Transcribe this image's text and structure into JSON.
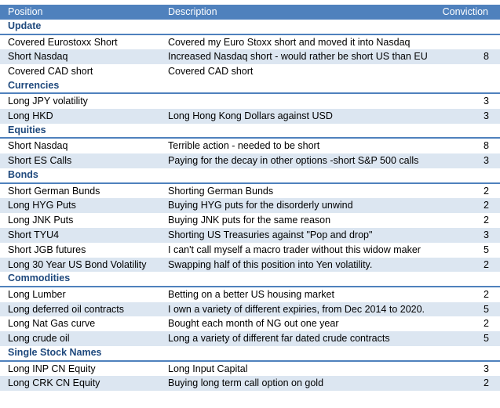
{
  "headers": {
    "position": "Position",
    "description": "Description",
    "conviction": "Conviction"
  },
  "sections": [
    {
      "title": "Update",
      "rows": [
        {
          "position": "Covered Eurostoxx Short",
          "description": "Covered my Euro Stoxx short and moved it into Nasdaq",
          "conviction": ""
        },
        {
          "position": "Short Nasdaq",
          "description": "Increased Nasdaq short - would rather be short US than EU",
          "conviction": "8"
        },
        {
          "position": "Covered CAD short",
          "description": "Covered CAD short",
          "conviction": ""
        }
      ]
    },
    {
      "title": "Currencies",
      "rows": [
        {
          "position": "Long JPY volatility",
          "description": "",
          "conviction": "3"
        },
        {
          "position": "Long HKD",
          "description": "Long Hong Kong Dollars against USD",
          "conviction": "3"
        }
      ]
    },
    {
      "title": "Equities",
      "rows": [
        {
          "position": "Short Nasdaq",
          "description": "Terrible action - needed to be short",
          "conviction": "8"
        },
        {
          "position": "Short ES Calls",
          "description": "Paying for the decay in other options -short S&P 500 calls",
          "conviction": "3"
        }
      ]
    },
    {
      "title": "Bonds",
      "rows": [
        {
          "position": "Short German Bunds",
          "description": "Shorting German Bunds",
          "conviction": "2"
        },
        {
          "position": "Long HYG Puts",
          "description": "Buying HYG puts for the disorderly unwind",
          "conviction": "2"
        },
        {
          "position": "Long JNK Puts",
          "description": "Buying JNK puts for the same reason",
          "conviction": "2"
        },
        {
          "position": "Short TYU4",
          "description": "Shorting US Treasuries against \"Pop and drop\"",
          "conviction": "3"
        },
        {
          "position": "Short JGB futures",
          "description": "I can't call myself a macro trader without this widow maker",
          "conviction": "5"
        },
        {
          "position": "Long 30 Year US Bond Volatility",
          "description": "Swapping half of this position into Yen volatility.",
          "conviction": "2"
        }
      ]
    },
    {
      "title": "Commodities",
      "rows": [
        {
          "position": "Long Lumber",
          "description": "Betting on a better US housing market",
          "conviction": "2"
        },
        {
          "position": "Long deferred oil contracts",
          "description": "I own a variety of different expiries, from Dec 2014 to 2020.",
          "conviction": "5"
        },
        {
          "position": "Long Nat Gas curve",
          "description": "Bought each month of NG out one year",
          "conviction": "2"
        },
        {
          "position": "Long crude oil",
          "description": "Long a variety of different far dated crude contracts",
          "conviction": "5"
        }
      ]
    },
    {
      "title": "Single Stock Names",
      "rows": [
        {
          "position": "Long INP CN Equity",
          "description": "Long Input Capital",
          "conviction": "3"
        },
        {
          "position": "Long CRK CN Equity",
          "description": "Buying long term call option on gold",
          "conviction": "2"
        }
      ]
    }
  ]
}
